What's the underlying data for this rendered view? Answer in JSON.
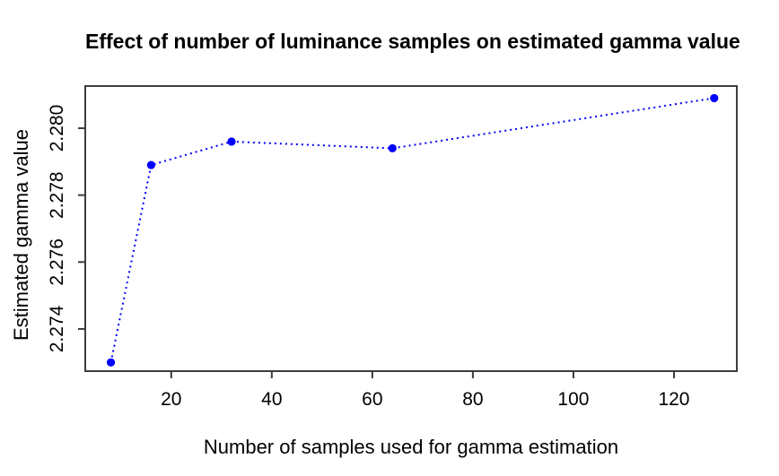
{
  "chart_data": {
    "type": "line",
    "title": "Effect of number of luminance samples on estimated gamma value",
    "xlabel": "Number of samples used for gamma estimation",
    "ylabel": "Estimated gamma value",
    "x": [
      8,
      16,
      32,
      64,
      128
    ],
    "y": [
      2.273,
      2.2789,
      2.2796,
      2.2794,
      2.2809
    ],
    "xlim": [
      2.9,
      132.5
    ],
    "ylim": [
      2.27274,
      2.28126
    ],
    "xticks": {
      "values": [
        20,
        40,
        60,
        80,
        100,
        120
      ],
      "labels": [
        "20",
        "40",
        "60",
        "80",
        "100",
        "120"
      ]
    },
    "yticks": {
      "values": [
        2.274,
        2.276,
        2.278,
        2.28
      ],
      "labels": [
        "2.274",
        "2.276",
        "2.278",
        "2.280"
      ]
    },
    "line_color": "#0000ff",
    "line_style": "dotted",
    "marker": "filled-circle",
    "marker_radius": 4.6,
    "axis_color": "#3d3d3d",
    "text_color": "#000000",
    "background": "#ffffff",
    "grid": false,
    "legend": null
  }
}
